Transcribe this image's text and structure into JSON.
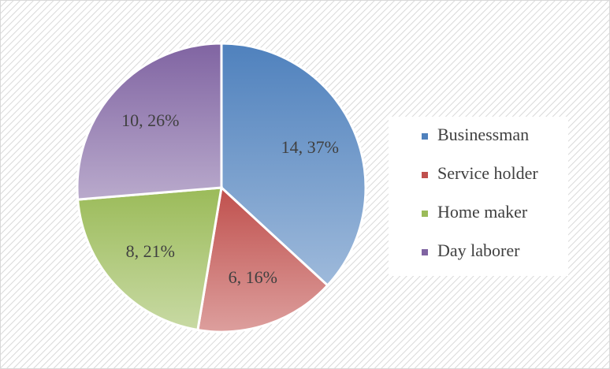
{
  "chart_data": {
    "type": "pie",
    "categories": [
      "Businessman",
      "Service holder",
      "Home maker",
      "Day laborer"
    ],
    "values": [
      14,
      6,
      8,
      10
    ],
    "value_labels": [
      "14, 37%",
      "6, 16%",
      "8, 21%",
      "10, 26%"
    ],
    "colors": [
      "#4f81bd",
      "#c0504d",
      "#9bbb59",
      "#8064a2"
    ],
    "legend": "right"
  }
}
